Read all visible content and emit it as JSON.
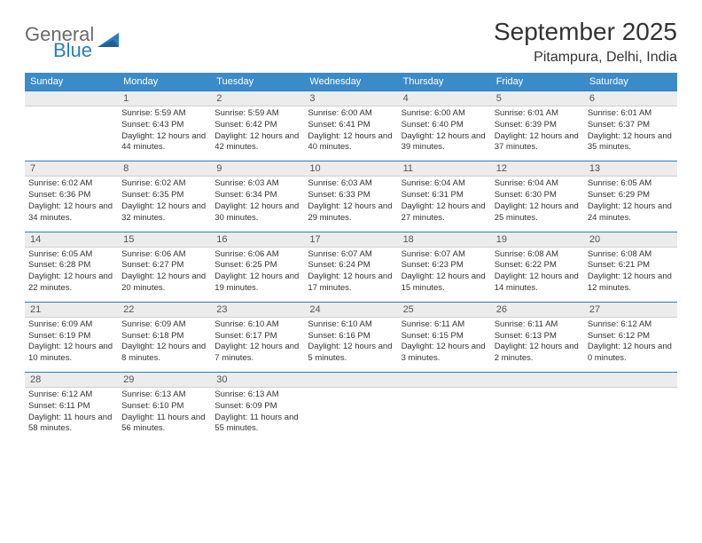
{
  "brand": {
    "top": "General",
    "bottom": "Blue"
  },
  "title": "September 2025",
  "location": "Pitampura, Delhi, India",
  "colors": {
    "header_bg": "#3b8bc9",
    "header_text": "#ffffff",
    "daynum_bg": "#ececec",
    "daynum_border_top": "#2a7dc0",
    "brand_gray": "#6b6b6b",
    "brand_blue": "#2a7dc0"
  },
  "day_headers": [
    "Sunday",
    "Monday",
    "Tuesday",
    "Wednesday",
    "Thursday",
    "Friday",
    "Saturday"
  ],
  "weeks": [
    [
      {
        "blank": true
      },
      {
        "n": "1",
        "sr": "5:59 AM",
        "ss": "6:43 PM",
        "dl": "12 hours and 44 minutes."
      },
      {
        "n": "2",
        "sr": "5:59 AM",
        "ss": "6:42 PM",
        "dl": "12 hours and 42 minutes."
      },
      {
        "n": "3",
        "sr": "6:00 AM",
        "ss": "6:41 PM",
        "dl": "12 hours and 40 minutes."
      },
      {
        "n": "4",
        "sr": "6:00 AM",
        "ss": "6:40 PM",
        "dl": "12 hours and 39 minutes."
      },
      {
        "n": "5",
        "sr": "6:01 AM",
        "ss": "6:39 PM",
        "dl": "12 hours and 37 minutes."
      },
      {
        "n": "6",
        "sr": "6:01 AM",
        "ss": "6:37 PM",
        "dl": "12 hours and 35 minutes."
      }
    ],
    [
      {
        "n": "7",
        "sr": "6:02 AM",
        "ss": "6:36 PM",
        "dl": "12 hours and 34 minutes."
      },
      {
        "n": "8",
        "sr": "6:02 AM",
        "ss": "6:35 PM",
        "dl": "12 hours and 32 minutes."
      },
      {
        "n": "9",
        "sr": "6:03 AM",
        "ss": "6:34 PM",
        "dl": "12 hours and 30 minutes."
      },
      {
        "n": "10",
        "sr": "6:03 AM",
        "ss": "6:33 PM",
        "dl": "12 hours and 29 minutes."
      },
      {
        "n": "11",
        "sr": "6:04 AM",
        "ss": "6:31 PM",
        "dl": "12 hours and 27 minutes."
      },
      {
        "n": "12",
        "sr": "6:04 AM",
        "ss": "6:30 PM",
        "dl": "12 hours and 25 minutes."
      },
      {
        "n": "13",
        "sr": "6:05 AM",
        "ss": "6:29 PM",
        "dl": "12 hours and 24 minutes."
      }
    ],
    [
      {
        "n": "14",
        "sr": "6:05 AM",
        "ss": "6:28 PM",
        "dl": "12 hours and 22 minutes."
      },
      {
        "n": "15",
        "sr": "6:06 AM",
        "ss": "6:27 PM",
        "dl": "12 hours and 20 minutes."
      },
      {
        "n": "16",
        "sr": "6:06 AM",
        "ss": "6:25 PM",
        "dl": "12 hours and 19 minutes."
      },
      {
        "n": "17",
        "sr": "6:07 AM",
        "ss": "6:24 PM",
        "dl": "12 hours and 17 minutes."
      },
      {
        "n": "18",
        "sr": "6:07 AM",
        "ss": "6:23 PM",
        "dl": "12 hours and 15 minutes."
      },
      {
        "n": "19",
        "sr": "6:08 AM",
        "ss": "6:22 PM",
        "dl": "12 hours and 14 minutes."
      },
      {
        "n": "20",
        "sr": "6:08 AM",
        "ss": "6:21 PM",
        "dl": "12 hours and 12 minutes."
      }
    ],
    [
      {
        "n": "21",
        "sr": "6:09 AM",
        "ss": "6:19 PM",
        "dl": "12 hours and 10 minutes."
      },
      {
        "n": "22",
        "sr": "6:09 AM",
        "ss": "6:18 PM",
        "dl": "12 hours and 8 minutes."
      },
      {
        "n": "23",
        "sr": "6:10 AM",
        "ss": "6:17 PM",
        "dl": "12 hours and 7 minutes."
      },
      {
        "n": "24",
        "sr": "6:10 AM",
        "ss": "6:16 PM",
        "dl": "12 hours and 5 minutes."
      },
      {
        "n": "25",
        "sr": "6:11 AM",
        "ss": "6:15 PM",
        "dl": "12 hours and 3 minutes."
      },
      {
        "n": "26",
        "sr": "6:11 AM",
        "ss": "6:13 PM",
        "dl": "12 hours and 2 minutes."
      },
      {
        "n": "27",
        "sr": "6:12 AM",
        "ss": "6:12 PM",
        "dl": "12 hours and 0 minutes."
      }
    ],
    [
      {
        "n": "28",
        "sr": "6:12 AM",
        "ss": "6:11 PM",
        "dl": "11 hours and 58 minutes."
      },
      {
        "n": "29",
        "sr": "6:13 AM",
        "ss": "6:10 PM",
        "dl": "11 hours and 56 minutes."
      },
      {
        "n": "30",
        "sr": "6:13 AM",
        "ss": "6:09 PM",
        "dl": "11 hours and 55 minutes."
      },
      {
        "blank": true
      },
      {
        "blank": true
      },
      {
        "blank": true
      },
      {
        "blank": true
      }
    ]
  ],
  "labels": {
    "sunrise": "Sunrise:",
    "sunset": "Sunset:",
    "daylight": "Daylight:"
  }
}
